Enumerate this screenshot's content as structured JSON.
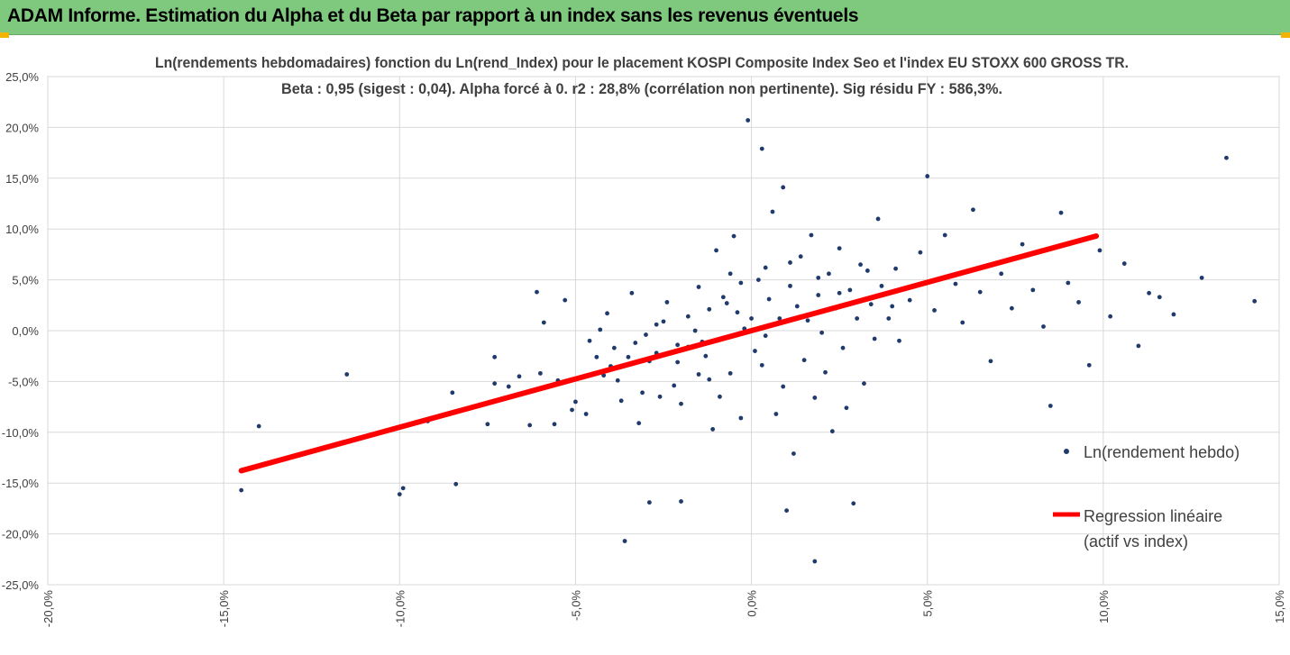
{
  "banner": {
    "title": "ADAM Informe. Estimation du Alpha et du Beta par rapport à un index sans les revenus éventuels"
  },
  "colors": {
    "banner": "#7fc97f",
    "points": "#1f3a6b",
    "regression": "#ff0000",
    "grid": "#d9d9d9"
  },
  "chart_data": {
    "type": "scatter",
    "title": "Ln(rendements hebdomadaires) fonction du Ln(rend_Index) pour le placement KOSPI Composite Index Seo et l'index EU STOXX 600 GROSS TR.",
    "subtitle": "Beta : 0,95 (sigest : 0,04). Alpha forcé à 0. r2 : 28,8% (corrélation non pertinente). Sig résidu FY : 586,3%.",
    "xlabel": "",
    "ylabel": "",
    "xlim": [
      -0.2,
      0.15
    ],
    "ylim": [
      -0.25,
      0.25
    ],
    "x_ticks": [
      "-20,0%",
      "-15,0%",
      "-10,0%",
      "-5,0%",
      "0,0%",
      "5,0%",
      "10,0%",
      "15,0%"
    ],
    "y_ticks": [
      "25,0%",
      "20,0%",
      "15,0%",
      "10,0%",
      "5,0%",
      "0,0%",
      "-5,0%",
      "-10,0%",
      "-15,0%",
      "-20,0%",
      "-25,0%"
    ],
    "grid": true,
    "legend_position": "right",
    "series": [
      {
        "name": "Ln(rendement hebdo)",
        "kind": "points",
        "points": [
          [
            -0.145,
            -0.157
          ],
          [
            -0.14,
            -0.094
          ],
          [
            -0.115,
            -0.043
          ],
          [
            -0.1,
            -0.161
          ],
          [
            -0.099,
            -0.155
          ],
          [
            -0.092,
            -0.089
          ],
          [
            -0.085,
            -0.061
          ],
          [
            -0.084,
            -0.151
          ],
          [
            -0.075,
            -0.092
          ],
          [
            -0.073,
            -0.052
          ],
          [
            -0.073,
            -0.026
          ],
          [
            -0.069,
            -0.055
          ],
          [
            -0.066,
            -0.045
          ],
          [
            -0.063,
            -0.093
          ],
          [
            -0.061,
            0.038
          ],
          [
            -0.06,
            -0.042
          ],
          [
            -0.059,
            0.008
          ],
          [
            -0.056,
            -0.092
          ],
          [
            -0.055,
            -0.049
          ],
          [
            -0.053,
            0.03
          ],
          [
            -0.051,
            -0.078
          ],
          [
            -0.05,
            -0.07
          ],
          [
            -0.047,
            -0.082
          ],
          [
            -0.046,
            -0.01
          ],
          [
            -0.044,
            -0.026
          ],
          [
            -0.043,
            0.001
          ],
          [
            -0.042,
            -0.044
          ],
          [
            -0.04,
            -0.035
          ],
          [
            -0.038,
            -0.049
          ],
          [
            -0.037,
            -0.069
          ],
          [
            -0.036,
            -0.207
          ],
          [
            -0.035,
            -0.026
          ],
          [
            -0.034,
            0.037
          ],
          [
            -0.032,
            -0.091
          ],
          [
            -0.031,
            -0.061
          ],
          [
            -0.029,
            -0.03
          ],
          [
            -0.029,
            -0.169
          ],
          [
            -0.027,
            -0.022
          ],
          [
            -0.026,
            -0.065
          ],
          [
            -0.025,
            0.009
          ],
          [
            -0.022,
            -0.054
          ],
          [
            -0.021,
            -0.031
          ],
          [
            -0.02,
            -0.072
          ],
          [
            -0.02,
            -0.168
          ],
          [
            -0.018,
            -0.016
          ],
          [
            -0.016,
            0.0
          ],
          [
            -0.015,
            0.043
          ],
          [
            -0.014,
            -0.011
          ],
          [
            -0.013,
            -0.025
          ],
          [
            -0.012,
            -0.048
          ],
          [
            -0.011,
            -0.097
          ],
          [
            -0.01,
            0.079
          ],
          [
            -0.009,
            -0.065
          ],
          [
            -0.008,
            -0.008
          ],
          [
            -0.007,
            0.027
          ],
          [
            -0.006,
            -0.042
          ],
          [
            -0.005,
            0.093
          ],
          [
            -0.004,
            0.018
          ],
          [
            -0.003,
            -0.086
          ],
          [
            -0.002,
            0.002
          ],
          [
            -0.001,
            0.207
          ],
          [
            0.0,
            0.012
          ],
          [
            0.001,
            -0.02
          ],
          [
            0.002,
            0.05
          ],
          [
            0.003,
            0.179
          ],
          [
            0.004,
            -0.005
          ],
          [
            0.005,
            0.031
          ],
          [
            0.006,
            0.117
          ],
          [
            0.007,
            -0.082
          ],
          [
            0.008,
            0.012
          ],
          [
            0.009,
            0.141
          ],
          [
            0.01,
            -0.177
          ],
          [
            0.011,
            0.067
          ],
          [
            0.012,
            -0.121
          ],
          [
            0.013,
            0.024
          ],
          [
            0.015,
            -0.029
          ],
          [
            0.016,
            0.01
          ],
          [
            0.017,
            0.094
          ],
          [
            0.018,
            -0.227
          ],
          [
            0.019,
            0.035
          ],
          [
            0.02,
            -0.002
          ],
          [
            0.022,
            0.056
          ],
          [
            0.023,
            -0.099
          ],
          [
            0.024,
            0.022
          ],
          [
            0.025,
            0.081
          ],
          [
            0.026,
            -0.017
          ],
          [
            0.028,
            0.04
          ],
          [
            0.029,
            -0.17
          ],
          [
            0.03,
            0.012
          ],
          [
            0.031,
            0.065
          ],
          [
            0.032,
            -0.052
          ],
          [
            0.034,
            0.026
          ],
          [
            0.035,
            -0.008
          ],
          [
            0.036,
            0.11
          ],
          [
            0.037,
            0.044
          ],
          [
            0.039,
            0.012
          ],
          [
            0.041,
            0.061
          ],
          [
            0.042,
            -0.01
          ],
          [
            0.045,
            0.03
          ],
          [
            0.048,
            0.077
          ],
          [
            0.05,
            0.152
          ],
          [
            0.052,
            0.02
          ],
          [
            0.055,
            0.094
          ],
          [
            0.058,
            0.046
          ],
          [
            0.06,
            0.008
          ],
          [
            0.063,
            0.119
          ],
          [
            0.065,
            0.038
          ],
          [
            0.068,
            -0.03
          ],
          [
            0.071,
            0.056
          ],
          [
            0.074,
            0.022
          ],
          [
            0.077,
            0.085
          ],
          [
            0.08,
            0.04
          ],
          [
            0.083,
            0.004
          ],
          [
            0.085,
            -0.074
          ],
          [
            0.088,
            0.116
          ],
          [
            0.09,
            0.047
          ],
          [
            0.093,
            0.028
          ],
          [
            0.096,
            -0.034
          ],
          [
            0.099,
            0.079
          ],
          [
            0.102,
            0.014
          ],
          [
            0.106,
            0.066
          ],
          [
            0.11,
            -0.015
          ],
          [
            0.113,
            0.037
          ],
          [
            0.116,
            0.033
          ],
          [
            0.12,
            0.016
          ],
          [
            0.128,
            0.052
          ],
          [
            0.135,
            0.17
          ],
          [
            0.143,
            0.029
          ],
          [
            0.158,
            0.042
          ],
          [
            -0.012,
            0.021
          ],
          [
            -0.018,
            0.014
          ],
          [
            -0.024,
            0.028
          ],
          [
            -0.03,
            -0.004
          ],
          [
            -0.041,
            0.017
          ],
          [
            -0.008,
            0.033
          ],
          [
            -0.003,
            0.047
          ],
          [
            0.004,
            0.062
          ],
          [
            0.014,
            0.073
          ],
          [
            0.021,
            -0.041
          ],
          [
            -0.015,
            -0.043
          ],
          [
            -0.021,
            -0.014
          ],
          [
            0.009,
            -0.055
          ],
          [
            0.018,
            -0.066
          ],
          [
            0.027,
            -0.076
          ],
          [
            -0.006,
            0.056
          ],
          [
            0.003,
            -0.034
          ],
          [
            0.011,
            0.044
          ],
          [
            0.019,
            0.052
          ],
          [
            0.025,
            0.037
          ],
          [
            -0.027,
            0.006
          ],
          [
            -0.033,
            -0.012
          ],
          [
            -0.039,
            -0.017
          ],
          [
            0.033,
            0.059
          ],
          [
            0.04,
            0.024
          ]
        ]
      },
      {
        "name": "Regression linéaire (actif vs index)",
        "kind": "line",
        "x": [
          -0.145,
          0.098
        ],
        "y": [
          -0.1378,
          0.0931
        ]
      }
    ]
  }
}
